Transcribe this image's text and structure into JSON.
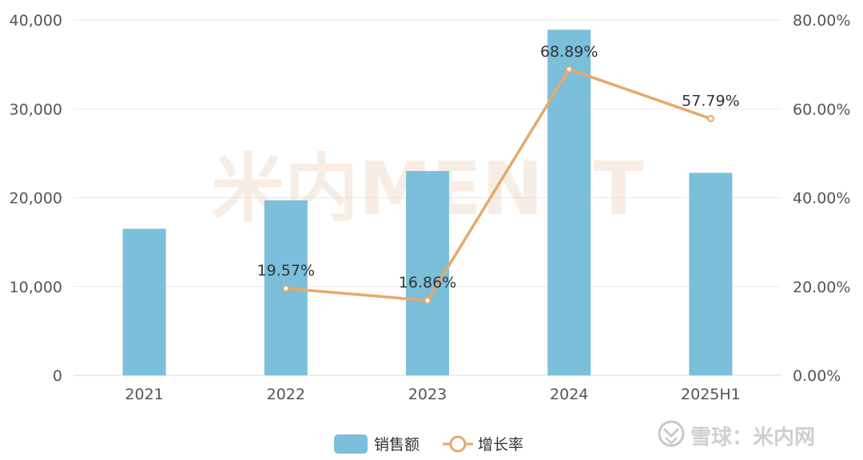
{
  "watermark": {
    "chart_logo": "米内MENET",
    "footer": "雪球：米内网"
  },
  "chart_data": {
    "type": "bar",
    "categories": [
      "2021",
      "2022",
      "2023",
      "2024",
      "2025H1"
    ],
    "series": [
      {
        "name": "销售额",
        "type": "bar",
        "axis": "left",
        "values": [
          16500,
          19700,
          23000,
          38900,
          22800
        ],
        "color": "#7bbfdb"
      },
      {
        "name": "增长率",
        "type": "line",
        "axis": "right",
        "values": [
          null,
          19.57,
          16.86,
          68.89,
          57.79
        ],
        "labels": [
          "",
          "19.57%",
          "16.86%",
          "68.89%",
          "57.79%"
        ],
        "color": "#e8a86b"
      }
    ],
    "y_left": {
      "min": 0,
      "max": 40000,
      "ticks": [
        "0",
        "10,000",
        "20,000",
        "30,000",
        "40,000"
      ]
    },
    "y_right": {
      "min": 0,
      "max": 80,
      "ticks": [
        "0.00%",
        "20.00%",
        "40.00%",
        "60.00%",
        "80.00%"
      ]
    },
    "grid": true,
    "legend": "bottom-center"
  }
}
